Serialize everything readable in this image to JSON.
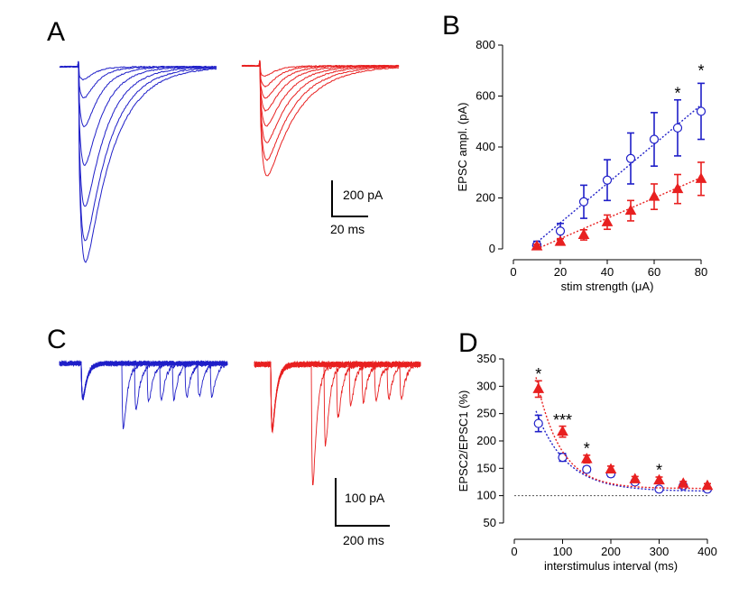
{
  "panels": {
    "A": "A",
    "B": "B",
    "C": "C",
    "D": "D"
  },
  "colors": {
    "blue": "#1f1fc8",
    "red": "#e82020",
    "axis": "#000000",
    "baseline": "#555555"
  },
  "scalebars": {
    "A": {
      "amplitude": "200 pA",
      "time": "20 ms"
    },
    "C": {
      "amplitude": "100 pA",
      "time": "200 ms"
    }
  },
  "chart_data": [
    {
      "id": "B",
      "type": "scatter",
      "xlabel": "stim strength (μA)",
      "ylabel": "EPSC ampl. (pA)",
      "xlim": [
        0,
        85
      ],
      "ylim": [
        0,
        800
      ],
      "xticks": [
        0,
        20,
        40,
        60,
        80
      ],
      "yticks": [
        0,
        200,
        400,
        600,
        800
      ],
      "x": [
        10,
        20,
        30,
        40,
        50,
        60,
        70,
        80
      ],
      "series": [
        {
          "marker": "open-circle",
          "color": "#1f1fc8",
          "values": [
            15,
            70,
            185,
            270,
            355,
            430,
            475,
            540
          ],
          "errors": [
            15,
            30,
            65,
            80,
            100,
            105,
            110,
            110
          ],
          "fit": [
            [
              8,
              10
            ],
            [
              80,
              565
            ]
          ]
        },
        {
          "marker": "filled-triangle",
          "color": "#e82020",
          "values": [
            10,
            28,
            55,
            105,
            150,
            205,
            235,
            275
          ],
          "errors": [
            8,
            12,
            20,
            28,
            40,
            50,
            57,
            65
          ],
          "fit": [
            [
              10,
              0
            ],
            [
              80,
              280
            ]
          ]
        }
      ],
      "annotations": [
        {
          "x": 70,
          "y": 610,
          "text": "*"
        },
        {
          "x": 80,
          "y": 700,
          "text": "*"
        }
      ]
    },
    {
      "id": "D",
      "type": "scatter",
      "xlabel": "interstimulus interval (ms)",
      "ylabel": "EPSC2/EPSC1 (%)",
      "xlim": [
        0,
        400
      ],
      "ylim": [
        40,
        350
      ],
      "xticks": [
        0,
        100,
        200,
        300,
        400
      ],
      "yticks": [
        50,
        100,
        150,
        200,
        250,
        300,
        350
      ],
      "reference_line": 100,
      "x": [
        50,
        100,
        150,
        200,
        250,
        300,
        350,
        400
      ],
      "series": [
        {
          "marker": "open-circle",
          "color": "#1f1fc8",
          "values": [
            232,
            170,
            148,
            140,
            125,
            112,
            118,
            112
          ],
          "errors": [
            15,
            7,
            5,
            5,
            4,
            4,
            4,
            4
          ],
          "fit_decay": {
            "base": 108,
            "amplitude": 300,
            "tau": 63,
            "xmin": 45,
            "xmax": 400
          }
        },
        {
          "marker": "filled-triangle",
          "color": "#e82020",
          "values": [
            295,
            217,
            167,
            148,
            130,
            128,
            122,
            118
          ],
          "errors": [
            15,
            10,
            7,
            6,
            5,
            6,
            4,
            4
          ],
          "fit_decay": {
            "base": 113,
            "amplitude": 500,
            "tau": 50,
            "xmin": 45,
            "xmax": 400
          }
        }
      ],
      "annotations": [
        {
          "x": 50,
          "y": 322,
          "text": "*"
        },
        {
          "x": 100,
          "y": 238,
          "text": "***"
        },
        {
          "x": 150,
          "y": 186,
          "text": "*"
        },
        {
          "x": 300,
          "y": 146,
          "text": "*"
        }
      ]
    }
  ]
}
